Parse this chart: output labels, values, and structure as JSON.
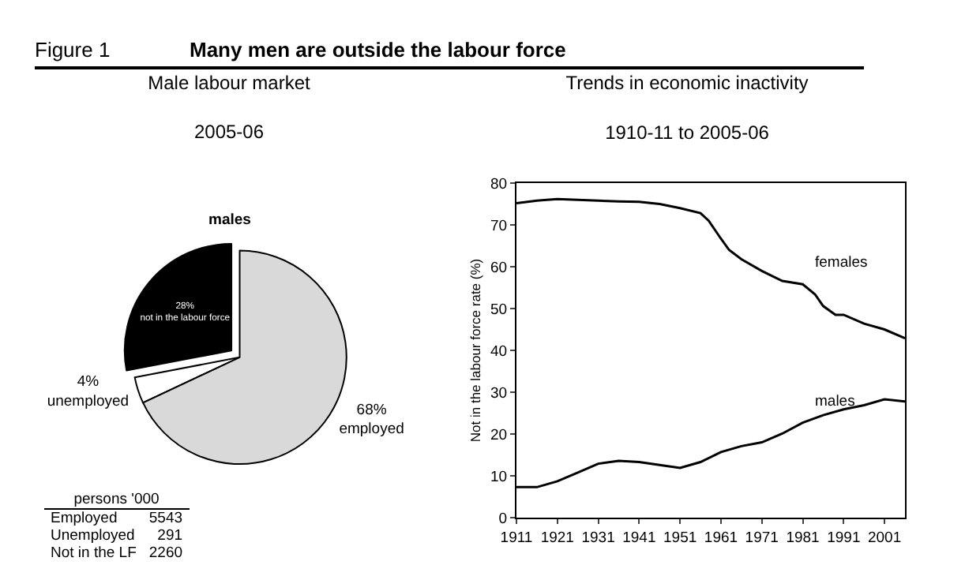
{
  "chart_data": [
    {
      "type": "pie",
      "title": "Male labour market",
      "subtitle": "2005-06",
      "categories": [
        "not in the labour force",
        "unemployed",
        "employed"
      ],
      "values": [
        28,
        4,
        68
      ],
      "value_labels": [
        "28%",
        "4%",
        "68%"
      ],
      "colors": [
        "#000000",
        "#ffffff",
        "#d9d9d9"
      ],
      "legend": false,
      "annotations": [
        "Figure 1",
        "Many men are outside the labour force",
        "males",
        "persons '000",
        "Employed",
        "5543",
        "Unemployed",
        "291",
        "Not in the LF",
        "2260"
      ]
    },
    {
      "type": "line",
      "title": "Trends in economic inactivity",
      "subtitle": "1910-11 to 2005-06",
      "ylabel": "Not in the labour force rate (%)",
      "xlim": [
        1911,
        2006
      ],
      "xticks": [
        1911,
        1921,
        1931,
        1941,
        1951,
        1961,
        1971,
        1981,
        1991,
        2001
      ],
      "ylim": [
        0,
        80
      ],
      "yticks": [
        0,
        10,
        20,
        30,
        40,
        50,
        60,
        70,
        80
      ],
      "grid": false,
      "legend": false,
      "series": [
        {
          "name": "females",
          "color": "#000000",
          "x": [
            1911,
            1916,
            1921,
            1926,
            1931,
            1936,
            1941,
            1946,
            1951,
            1956,
            1958,
            1961,
            1963,
            1966,
            1971,
            1976,
            1981,
            1984,
            1986,
            1989,
            1991,
            1996,
            2001,
            2006
          ],
          "values": [
            75.2,
            75.8,
            76.2,
            76,
            75.8,
            75.6,
            75.5,
            75,
            74,
            72.8,
            71,
            66.7,
            64,
            61.8,
            59,
            56.6,
            55.8,
            53.4,
            50.6,
            48.5,
            48.5,
            46.4,
            45,
            42.9
          ]
        },
        {
          "name": "males",
          "color": "#000000",
          "x": [
            1911,
            1916,
            1921,
            1926,
            1931,
            1936,
            1941,
            1946,
            1951,
            1956,
            1961,
            1966,
            1971,
            1976,
            1981,
            1986,
            1991,
            1996,
            2001,
            2006
          ],
          "values": [
            7.3,
            7.3,
            8.7,
            10.8,
            12.9,
            13.6,
            13.3,
            12.6,
            11.9,
            13.3,
            15.7,
            17.1,
            18,
            20.1,
            22.7,
            24.5,
            25.9,
            26.9,
            28.3,
            27.8
          ]
        }
      ]
    }
  ]
}
